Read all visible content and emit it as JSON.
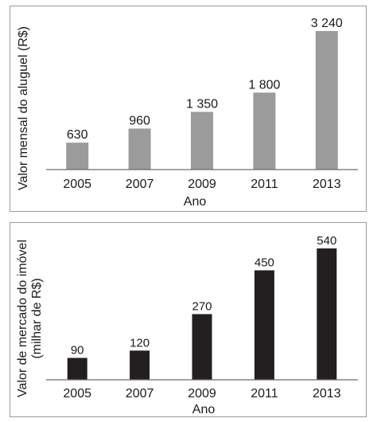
{
  "chart_data": [
    {
      "type": "bar",
      "title": "",
      "xlabel": "Ano",
      "ylabel": "Valor mensal do aluguel (R$)",
      "ylabel_lines": [
        "Valor mensal do aluguel (R$)"
      ],
      "categories": [
        "2005",
        "2007",
        "2009",
        "2011",
        "2013"
      ],
      "values": [
        630,
        960,
        1350,
        1800,
        3240
      ],
      "data_labels": [
        "630",
        "960",
        "1 350",
        "1 800",
        "3 240"
      ],
      "ylim": [
        0,
        3240
      ],
      "bar_color": "#9b9b9b",
      "grid": false,
      "legend": "none"
    },
    {
      "type": "bar",
      "title": "",
      "xlabel": "Ano",
      "ylabel": "Valor de mercado do imóvel (milhar de R$)",
      "ylabel_lines": [
        "Valor de mercado do imóvel",
        "(milhar de R$)"
      ],
      "categories": [
        "2005",
        "2007",
        "2009",
        "2011",
        "2013"
      ],
      "values": [
        90,
        120,
        270,
        450,
        540
      ],
      "data_labels": [
        "90",
        "120",
        "270",
        "450",
        "540"
      ],
      "ylim": [
        0,
        540
      ],
      "bar_color": "#231f20",
      "grid": false,
      "legend": "none"
    }
  ]
}
